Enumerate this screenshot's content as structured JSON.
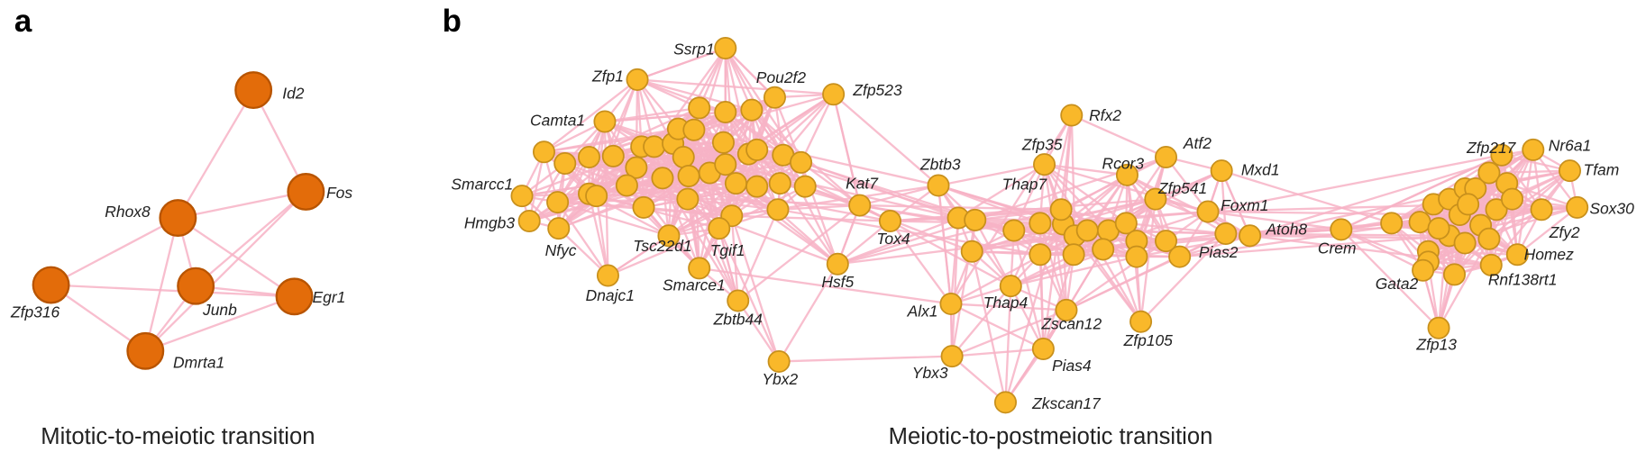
{
  "panels": [
    {
      "label": "a",
      "caption": "Mitotic-to-meiotic transition",
      "nodes": [
        "Id2",
        "Fos",
        "Rhox8",
        "Junb",
        "Egr1",
        "Zfp316",
        "Dmrta1"
      ]
    },
    {
      "label": "b",
      "caption": "Meiotic-to-postmeiotic transition",
      "nodes": [
        "Ssrp1",
        "Zfp1",
        "Pou2f2",
        "Zfp523",
        "Camta1",
        "Rfx2",
        "Zfp35",
        "Atf2",
        "Rcor3",
        "Mxd1",
        "Smarcc1",
        "Kat7",
        "Zbtb3",
        "Thap7",
        "Zfp541",
        "Zfp217",
        "Nr6a1",
        "Tfam",
        "Foxm1",
        "Sox30",
        "Hmgb3",
        "Zfy2",
        "Tox4",
        "Nfyc",
        "Atoh8",
        "Crem",
        "Pias2",
        "Tsc22d1",
        "Tgif1",
        "Homez",
        "Gata2",
        "Rnf138rt1",
        "Smarce1",
        "Hsf5",
        "Dnajc1",
        "Zbtb44",
        "Alx1",
        "Thap4",
        "Zscan12",
        "Zfp105",
        "Zfp13",
        "Pias4",
        "Ybx2",
        "Ybx3",
        "Zkscan17"
      ]
    }
  ]
}
